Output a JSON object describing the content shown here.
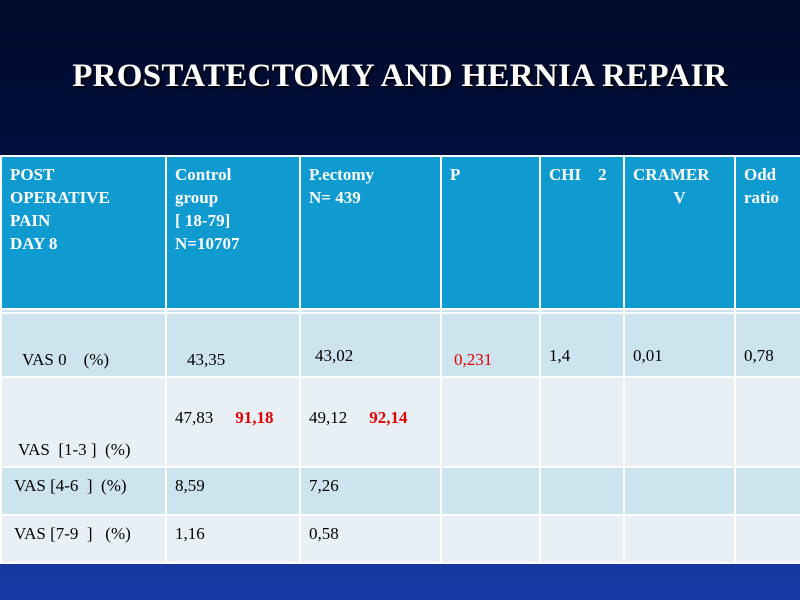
{
  "title": "PROSTATECTOMY AND HERNIA REPAIR",
  "table": {
    "headers": {
      "col1": [
        "POST",
        "OPERATIVE",
        "PAIN",
        "DAY 8"
      ],
      "col2": [
        "Control",
        "group",
        "[ 18-79]",
        "N=10707"
      ],
      "col3": [
        "P.ectomy",
        "N= 439"
      ],
      "col4": "P",
      "col5": "CHI    2",
      "col6": [
        "CRAMER",
        "V"
      ],
      "col7": [
        "Odd",
        "ratio"
      ]
    },
    "rows": [
      {
        "label": "VAS 0    (%)",
        "control": "43,35",
        "pectomy": "43,02",
        "p": "0,231",
        "chi2": "1,4",
        "cramer": "0,01",
        "odd": "0,78"
      },
      {
        "label": "VAS  [1-3 ]  (%)",
        "control": "47,83",
        "control_sum": "91,18",
        "pectomy": "49,12",
        "pectomy_sum": "92,14",
        "p": "",
        "chi2": "",
        "cramer": "",
        "odd": ""
      },
      {
        "label": "VAS [4-6  ]  (%)",
        "control": "8,59",
        "pectomy": "7,26",
        "p": "",
        "chi2": "",
        "cramer": "",
        "odd": ""
      },
      {
        "label": "VAS [7-9  ]   (%)",
        "control": "1,16",
        "pectomy": "0,58",
        "p": "",
        "chi2": "",
        "cramer": "",
        "odd": ""
      }
    ]
  }
}
